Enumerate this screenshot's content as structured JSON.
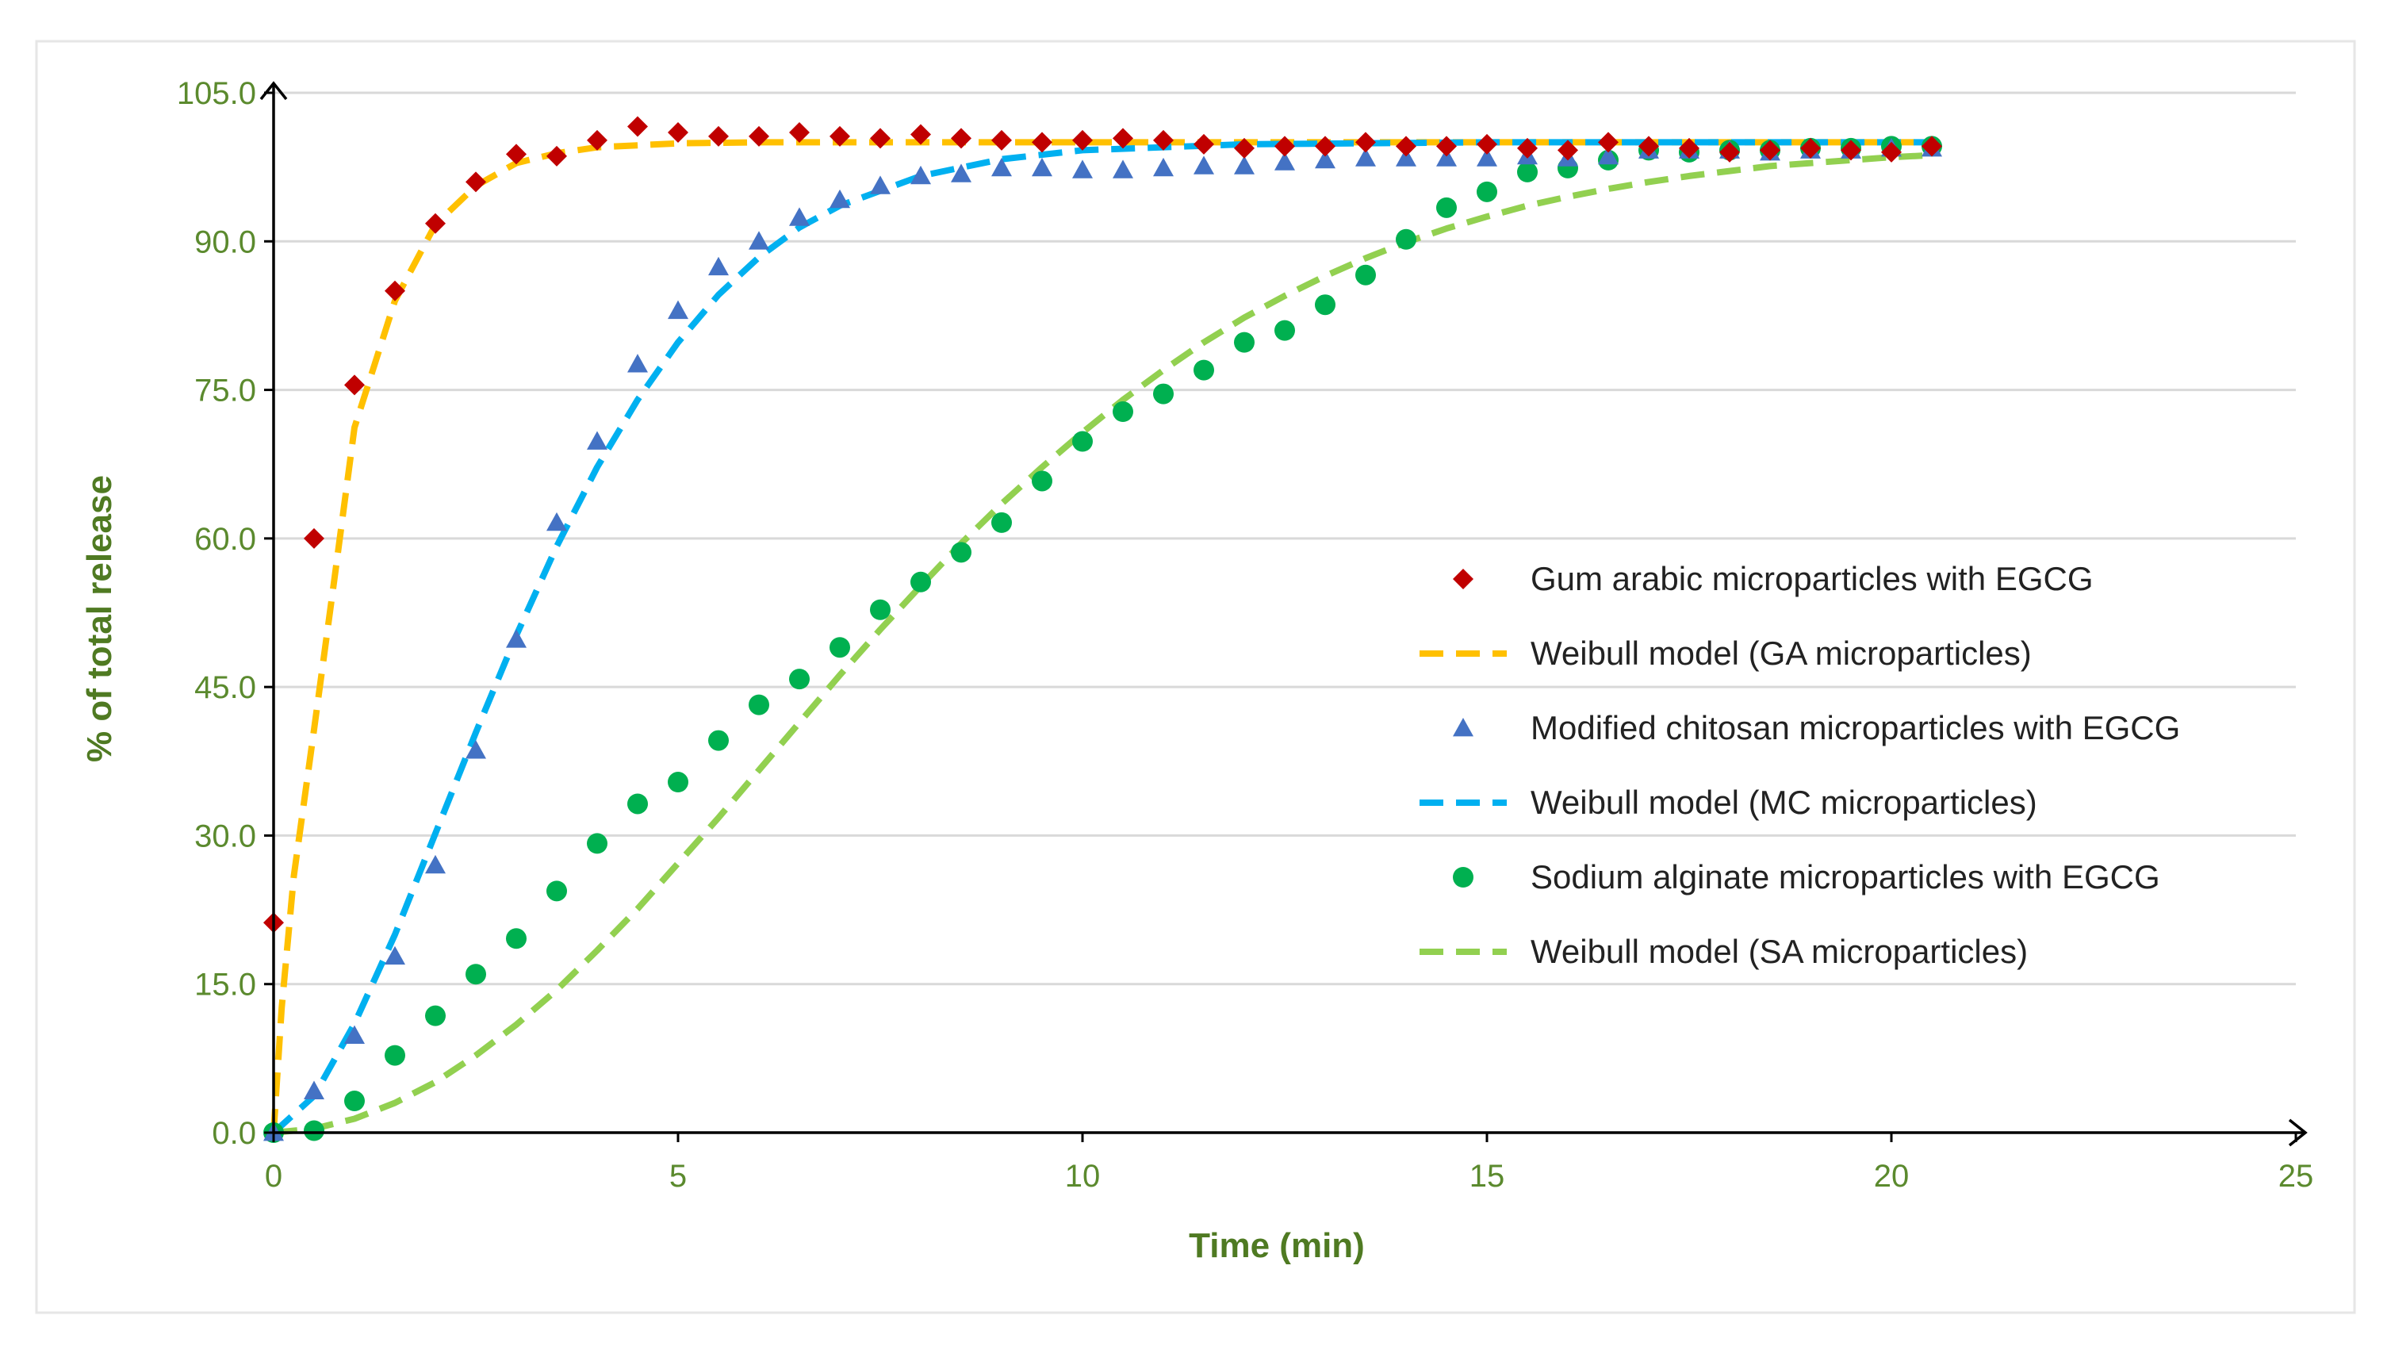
{
  "chart_data": {
    "type": "scatter",
    "title": "",
    "xlabel": "Time (min)",
    "ylabel": "% of total release",
    "xlim": [
      0,
      25
    ],
    "ylim": [
      0,
      105
    ],
    "x_ticks": [
      "0",
      "5",
      "10",
      "15",
      "20",
      "25"
    ],
    "y_ticks": [
      "0.0",
      "15.0",
      "30.0",
      "45.0",
      "60.0",
      "75.0",
      "90.0",
      "105.0"
    ],
    "grid": "horizontal",
    "legend_position": "right",
    "colors": {
      "ga_points": "#c00000",
      "ga_model": "#ffc000",
      "mc_points": "#4472c4",
      "mc_model": "#00b0f0",
      "sa_points": "#00b050",
      "sa_model": "#92d050",
      "axis": "#000000",
      "grid": "#d9d9d9",
      "tick_text": "#5b8a2e"
    },
    "series": [
      {
        "id": "ga_points",
        "name": "Gum arabic microparticles with EGCG",
        "kind": "points",
        "marker": "diamond",
        "x": [
          0,
          0.5,
          1,
          1.5,
          2,
          2.5,
          3,
          3.5,
          4,
          4.5,
          5,
          5.5,
          6,
          6.5,
          7,
          7.5,
          8,
          8.5,
          9,
          9.5,
          10,
          10.5,
          11,
          11.5,
          12,
          12.5,
          13,
          13.5,
          14,
          14.5,
          15,
          15.5,
          16,
          16.5,
          17,
          17.5,
          18,
          18.5,
          19,
          19.5,
          20,
          20.5
        ],
        "values": [
          21.2,
          60.0,
          75.5,
          85.0,
          91.8,
          96.0,
          98.8,
          98.6,
          100.2,
          101.6,
          101.0,
          100.6,
          100.6,
          101.0,
          100.6,
          100.4,
          100.8,
          100.4,
          100.2,
          100.0,
          100.2,
          100.4,
          100.2,
          99.8,
          99.4,
          99.6,
          99.6,
          100.0,
          99.6,
          99.6,
          99.8,
          99.4,
          99.2,
          100.0,
          99.6,
          99.4,
          99.0,
          99.2,
          99.4,
          99.2,
          99.0,
          99.6
        ]
      },
      {
        "id": "ga_model",
        "name": "Weibull model (GA microparticles)",
        "kind": "line",
        "params": {
          "scale_min": 0.8,
          "shape": 0.8
        },
        "x": [
          0,
          0.1,
          0.25,
          0.5,
          0.75,
          1,
          1.5,
          2,
          2.5,
          3,
          3.5,
          4,
          5,
          6,
          8,
          10,
          12,
          15,
          18,
          20.5
        ],
        "values": [
          0,
          12.6,
          25.9,
          40.7,
          55.8,
          71.2,
          84.0,
          91.7,
          95.6,
          97.9,
          98.9,
          99.5,
          99.9,
          100.0,
          100.0,
          100.0,
          100.0,
          100.0,
          100.0,
          100.0
        ]
      },
      {
        "id": "mc_points",
        "name": "Modified chitosan microparticles with EGCG",
        "kind": "points",
        "marker": "triangle",
        "x": [
          0,
          0.5,
          1,
          1.5,
          2,
          2.5,
          3,
          3.5,
          4,
          4.5,
          5,
          5.5,
          6,
          6.5,
          7,
          7.5,
          8,
          8.5,
          9,
          9.5,
          10,
          10.5,
          11,
          11.5,
          12,
          12.5,
          13,
          13.5,
          14,
          14.5,
          15,
          15.5,
          16,
          16.5,
          17,
          17.5,
          18,
          18.5,
          19,
          19.5,
          20,
          20.5
        ],
        "values": [
          0,
          4.2,
          9.8,
          17.8,
          27.0,
          38.6,
          49.8,
          61.6,
          69.8,
          77.6,
          83.0,
          87.4,
          90.0,
          92.4,
          94.2,
          95.6,
          96.6,
          96.8,
          97.4,
          97.4,
          97.2,
          97.2,
          97.4,
          97.6,
          97.6,
          98.0,
          98.2,
          98.4,
          98.4,
          98.4,
          98.4,
          98.6,
          98.4,
          98.6,
          99.2,
          99.2,
          99.2,
          99.0,
          99.2,
          99.2,
          99.4,
          99.4
        ]
      },
      {
        "id": "mc_model",
        "name": "Weibull model (MC microparticles)",
        "kind": "line",
        "params": {
          "scale_min": 3.7,
          "shape": 1.6
        },
        "x": [
          0,
          0.5,
          1,
          1.5,
          2,
          2.5,
          3,
          3.5,
          4,
          4.5,
          5,
          5.5,
          6,
          6.5,
          7,
          8,
          9,
          10,
          12,
          15,
          18,
          20.5
        ],
        "values": [
          0,
          3.7,
          11.0,
          20.0,
          30.2,
          40.4,
          50.2,
          59.2,
          67.2,
          74.0,
          79.8,
          84.6,
          88.4,
          91.4,
          93.6,
          96.6,
          98.3,
          99.2,
          99.8,
          100.0,
          100.0,
          100.0
        ]
      },
      {
        "id": "sa_points",
        "name": "Sodium alginate microparticles with EGCG",
        "kind": "points",
        "marker": "circle",
        "x": [
          0,
          0.5,
          1,
          1.5,
          2,
          2.5,
          3,
          3.5,
          4,
          4.5,
          5,
          5.5,
          6,
          6.5,
          7,
          7.5,
          8,
          8.5,
          9,
          9.5,
          10,
          10.5,
          11,
          11.5,
          12,
          12.5,
          13,
          13.5,
          14,
          14.5,
          15,
          15.5,
          16,
          16.5,
          17,
          17.5,
          18,
          18.5,
          19,
          19.5,
          20,
          20.5
        ],
        "values": [
          0,
          0.2,
          3.2,
          7.8,
          11.8,
          16.0,
          19.6,
          24.4,
          29.2,
          33.2,
          35.4,
          39.6,
          43.2,
          45.8,
          49.0,
          52.8,
          55.6,
          58.6,
          61.6,
          65.8,
          69.8,
          72.8,
          74.6,
          77.0,
          79.8,
          81.0,
          83.6,
          86.6,
          90.2,
          93.4,
          95.0,
          97.0,
          97.4,
          98.2,
          99.2,
          99.0,
          99.2,
          99.2,
          99.4,
          99.4,
          99.6,
          99.6
        ]
      },
      {
        "id": "sa_model",
        "name": "Weibull model (SA microparticles)",
        "kind": "line",
        "params": {
          "scale_min": 9.3,
          "shape": 1.9
        },
        "x": [
          0,
          0.5,
          1,
          1.5,
          2,
          2.5,
          3,
          3.5,
          4,
          4.5,
          5,
          5.5,
          6,
          6.5,
          7,
          7.5,
          8,
          8.5,
          9,
          9.5,
          10,
          10.5,
          11,
          11.5,
          12,
          12.5,
          13,
          13.5,
          14,
          14.5,
          15,
          15.5,
          16,
          16.5,
          17,
          17.5,
          18,
          18.5,
          19,
          19.5,
          20,
          20.5
        ],
        "values": [
          0,
          0.4,
          1.4,
          3.0,
          5.1,
          7.8,
          10.9,
          14.4,
          18.4,
          22.6,
          27.2,
          31.8,
          36.6,
          41.4,
          46.2,
          50.8,
          55.2,
          59.5,
          63.5,
          67.2,
          70.7,
          74.0,
          77.0,
          79.8,
          82.3,
          84.5,
          86.5,
          88.3,
          89.9,
          91.3,
          92.5,
          93.6,
          94.5,
          95.3,
          96.0,
          96.6,
          97.1,
          97.6,
          97.9,
          98.2,
          98.5,
          98.7
        ]
      }
    ]
  }
}
